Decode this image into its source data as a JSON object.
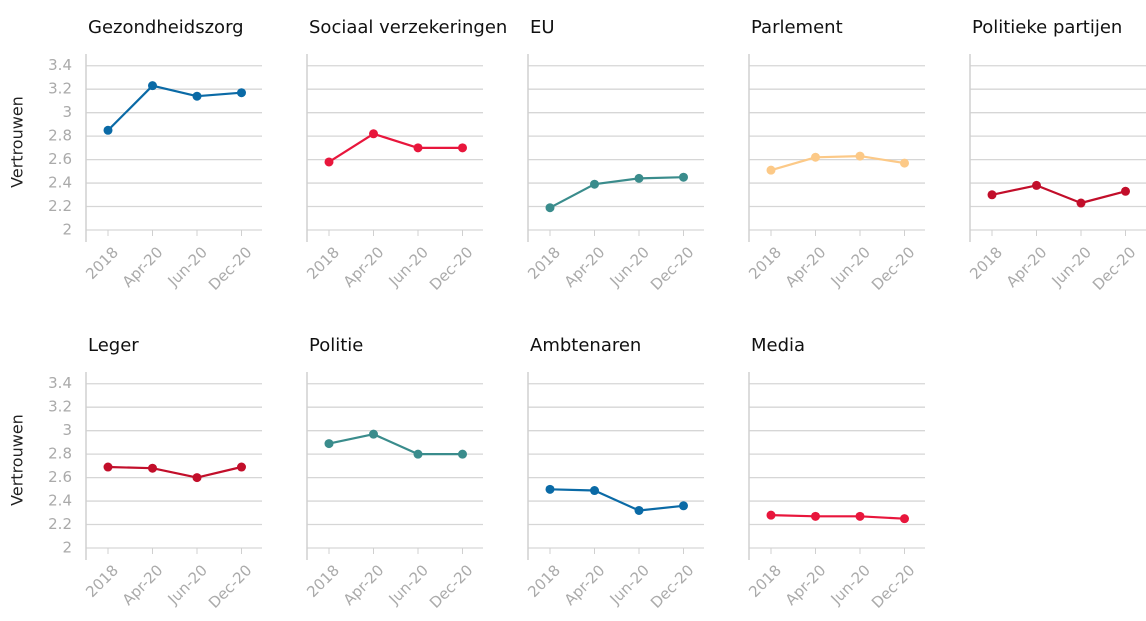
{
  "chart_data": [
    {
      "type": "line",
      "title": "Gezondheidszorg",
      "ylabel": "Vertrouwen",
      "categories": [
        "2018",
        "Apr-20",
        "Jun-20",
        "Dec-20"
      ],
      "series": [
        {
          "color": "#0a6aa6",
          "values": [
            2.85,
            3.23,
            3.14,
            3.17
          ]
        }
      ],
      "ylim": [
        2,
        3.5
      ],
      "yticks": [
        2,
        2.2,
        2.4,
        2.6,
        2.8,
        3,
        3.2,
        3.4
      ],
      "grid": true
    },
    {
      "type": "line",
      "title": "Sociaal verzekeringen",
      "categories": [
        "2018",
        "Apr-20",
        "Jun-20",
        "Dec-20"
      ],
      "series": [
        {
          "color": "#e8163c",
          "values": [
            2.58,
            2.82,
            2.7,
            2.7
          ]
        }
      ],
      "ylim": [
        2,
        3.5
      ],
      "yticks": [
        2,
        2.2,
        2.4,
        2.6,
        2.8,
        3,
        3.2,
        3.4
      ],
      "grid": true
    },
    {
      "type": "line",
      "title": "EU",
      "categories": [
        "2018",
        "Apr-20",
        "Jun-20",
        "Dec-20"
      ],
      "series": [
        {
          "color": "#3a8c8c",
          "values": [
            2.19,
            2.39,
            2.44,
            2.45
          ]
        }
      ],
      "ylim": [
        2,
        3.5
      ],
      "yticks": [
        2,
        2.2,
        2.4,
        2.6,
        2.8,
        3,
        3.2,
        3.4
      ],
      "grid": true
    },
    {
      "type": "line",
      "title": "Parlement",
      "categories": [
        "2018",
        "Apr-20",
        "Jun-20",
        "Dec-20"
      ],
      "series": [
        {
          "color": "#fcc987",
          "values": [
            2.51,
            2.62,
            2.63,
            2.57
          ]
        }
      ],
      "ylim": [
        2,
        3.5
      ],
      "yticks": [
        2,
        2.2,
        2.4,
        2.6,
        2.8,
        3,
        3.2,
        3.4
      ],
      "grid": true
    },
    {
      "type": "line",
      "title": "Politieke partijen",
      "categories": [
        "2018",
        "Apr-20",
        "Jun-20",
        "Dec-20"
      ],
      "series": [
        {
          "color": "#c20e2a",
          "values": [
            2.3,
            2.38,
            2.23,
            2.33
          ]
        }
      ],
      "ylim": [
        2,
        3.5
      ],
      "yticks": [
        2,
        2.2,
        2.4,
        2.6,
        2.8,
        3,
        3.2,
        3.4
      ],
      "grid": true
    },
    {
      "type": "line",
      "title": "Leger",
      "ylabel": "Vertrouwen",
      "categories": [
        "2018",
        "Apr-20",
        "Jun-20",
        "Dec-20"
      ],
      "series": [
        {
          "color": "#c20e2a",
          "values": [
            2.69,
            2.68,
            2.6,
            2.69
          ]
        }
      ],
      "ylim": [
        2,
        3.5
      ],
      "yticks": [
        2,
        2.2,
        2.4,
        2.6,
        2.8,
        3,
        3.2,
        3.4
      ],
      "grid": true
    },
    {
      "type": "line",
      "title": "Politie",
      "categories": [
        "2018",
        "Apr-20",
        "Jun-20",
        "Dec-20"
      ],
      "series": [
        {
          "color": "#3a8c8c",
          "values": [
            2.89,
            2.97,
            2.8,
            2.8
          ]
        }
      ],
      "ylim": [
        2,
        3.5
      ],
      "yticks": [
        2,
        2.2,
        2.4,
        2.6,
        2.8,
        3,
        3.2,
        3.4
      ],
      "grid": true
    },
    {
      "type": "line",
      "title": "Ambtenaren",
      "categories": [
        "2018",
        "Apr-20",
        "Jun-20",
        "Dec-20"
      ],
      "series": [
        {
          "color": "#0a6aa6",
          "values": [
            2.5,
            2.49,
            2.32,
            2.36
          ]
        }
      ],
      "ylim": [
        2,
        3.5
      ],
      "yticks": [
        2,
        2.2,
        2.4,
        2.6,
        2.8,
        3,
        3.2,
        3.4
      ],
      "grid": true
    },
    {
      "type": "line",
      "title": "Media",
      "categories": [
        "2018",
        "Apr-20",
        "Jun-20",
        "Dec-20"
      ],
      "series": [
        {
          "color": "#e8163c",
          "values": [
            2.28,
            2.27,
            2.27,
            2.25
          ]
        }
      ],
      "ylim": [
        2,
        3.5
      ],
      "yticks": [
        2,
        2.2,
        2.4,
        2.6,
        2.8,
        3,
        3.2,
        3.4
      ],
      "grid": true
    }
  ]
}
